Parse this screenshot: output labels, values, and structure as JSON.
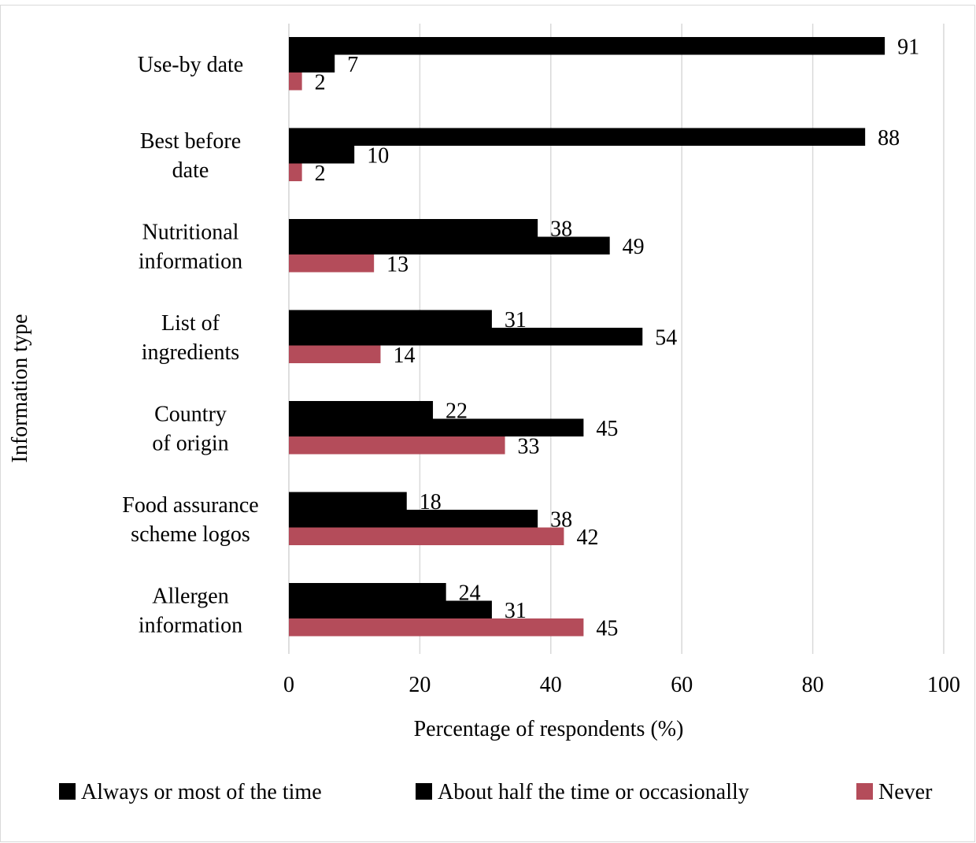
{
  "chart_data": {
    "type": "bar",
    "orientation": "horizontal",
    "categories": [
      [
        "Use-by date"
      ],
      [
        "Best before",
        "date"
      ],
      [
        "Nutritional",
        "information"
      ],
      [
        "List of",
        "ingredients"
      ],
      [
        "Country",
        "of origin"
      ],
      [
        "Food assurance",
        "scheme logos"
      ],
      [
        "Allergen",
        "information"
      ]
    ],
    "series": [
      {
        "name": "Always or most of the time",
        "color": "#000000",
        "values": [
          91,
          88,
          38,
          31,
          22,
          18,
          24
        ]
      },
      {
        "name": "About half the time or occasionally",
        "color": "#000000",
        "values": [
          7,
          10,
          49,
          54,
          45,
          38,
          31
        ]
      },
      {
        "name": "Never",
        "color": "#b44c5a",
        "values": [
          2,
          2,
          13,
          14,
          33,
          42,
          45
        ]
      }
    ],
    "xlabel": "Percentage of respondents (%)",
    "ylabel": "Information type",
    "xlim": [
      0,
      100
    ],
    "xticks": [
      0,
      20,
      40,
      60,
      80,
      100
    ],
    "grid": true,
    "legend_position": "bottom"
  }
}
